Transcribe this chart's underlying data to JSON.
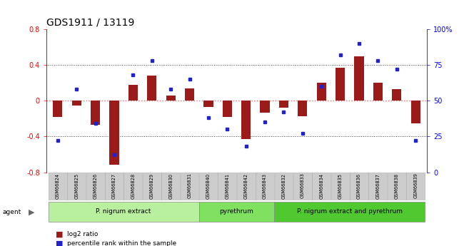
{
  "title": "GDS1911 / 13119",
  "samples": [
    "GSM66824",
    "GSM66825",
    "GSM66826",
    "GSM66827",
    "GSM66828",
    "GSM66829",
    "GSM66830",
    "GSM66831",
    "GSM66840",
    "GSM66841",
    "GSM66842",
    "GSM66843",
    "GSM66832",
    "GSM66833",
    "GSM66834",
    "GSM66835",
    "GSM66836",
    "GSM66837",
    "GSM66838",
    "GSM66839"
  ],
  "log2_ratio": [
    -0.18,
    -0.05,
    -0.27,
    -0.72,
    0.18,
    0.28,
    0.06,
    0.14,
    -0.07,
    -0.18,
    -0.43,
    -0.13,
    -0.08,
    -0.17,
    0.2,
    0.37,
    0.5,
    0.2,
    0.13,
    -0.25
  ],
  "percentile": [
    22,
    58,
    34,
    12,
    68,
    78,
    58,
    65,
    38,
    30,
    18,
    35,
    42,
    27,
    60,
    82,
    90,
    78,
    72,
    22
  ],
  "groups": [
    {
      "label": "P. nigrum extract",
      "start": 0,
      "end": 8,
      "color": "#b8f0a0"
    },
    {
      "label": "pyrethrum",
      "start": 8,
      "end": 12,
      "color": "#80e060"
    },
    {
      "label": "P. nigrum extract and pyrethrum",
      "start": 12,
      "end": 20,
      "color": "#50c830"
    }
  ],
  "ylim_left": [
    -0.8,
    0.8
  ],
  "bar_color": "#9b1a1a",
  "dot_color": "#2222cc",
  "zero_line_color": "#ff6666",
  "dotted_line_color": "#444444",
  "background_color": "#ffffff",
  "bar_width": 0.5,
  "sample_box_color": "#cccccc"
}
